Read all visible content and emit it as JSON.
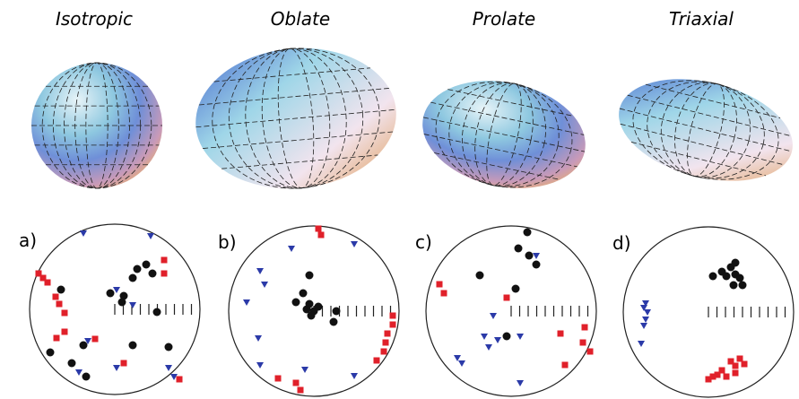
{
  "panels": [
    {
      "title": "Isotropic",
      "label": "a)"
    },
    {
      "title": "Oblate",
      "label": "b)"
    },
    {
      "title": "Prolate",
      "label": "c)"
    },
    {
      "title": "Triaxial",
      "label": "d)"
    }
  ]
}
